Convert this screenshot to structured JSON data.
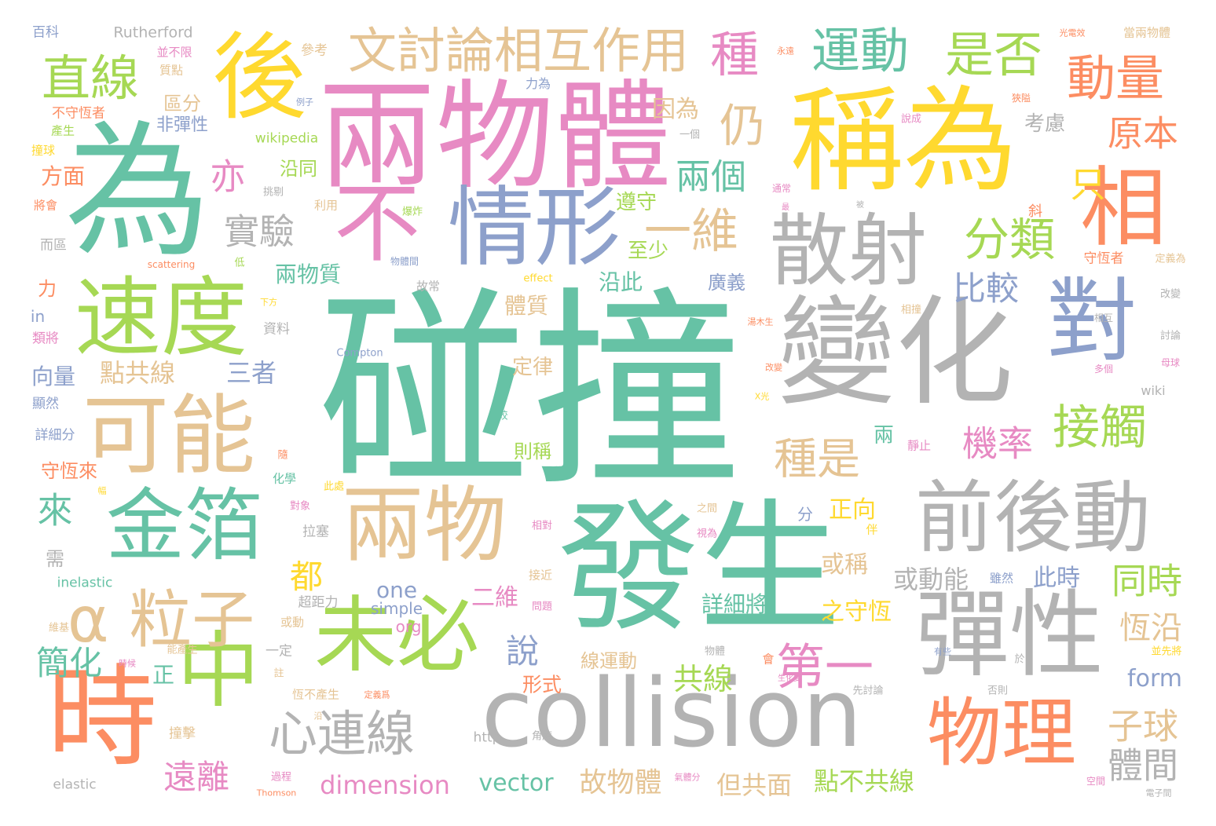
{
  "words": [
    {
      "id": "pengzhuang",
      "text": "碰撞",
      "color": "#66c2a5"
    },
    {
      "id": "liangwuti",
      "text": "兩物體",
      "color": "#e78ac3"
    },
    {
      "id": "wei",
      "text": "為",
      "color": "#66c2a5"
    },
    {
      "id": "chengwei",
      "text": "稱為",
      "color": "#ffd92f"
    },
    {
      "id": "fasheng",
      "text": "發生",
      "color": "#66c2a5"
    },
    {
      "id": "collision",
      "text": "collision",
      "color": "#b3b3b3"
    },
    {
      "id": "bianhua",
      "text": "變化",
      "color": "#b3b3b3"
    },
    {
      "id": "shi",
      "text": "時",
      "color": "#fc8d62"
    },
    {
      "id": "hou",
      "text": "後",
      "color": "#ffd92f"
    },
    {
      "id": "dui",
      "text": "對",
      "color": "#8da0cb"
    },
    {
      "id": "xiang",
      "text": "相",
      "color": "#fc8d62"
    },
    {
      "id": "sudu",
      "text": "速度",
      "color": "#a6d854"
    },
    {
      "id": "keneng",
      "text": "可能",
      "color": "#e5c494"
    },
    {
      "id": "jinbo",
      "text": "金箔",
      "color": "#66c2a5"
    },
    {
      "id": "liangwu",
      "text": "兩物",
      "color": "#e5c494"
    },
    {
      "id": "weibi",
      "text": "未必",
      "color": "#a6d854"
    },
    {
      "id": "zhong",
      "text": "中",
      "color": "#a6d854"
    },
    {
      "id": "qianhoudong",
      "text": "前後動",
      "color": "#b3b3b3"
    },
    {
      "id": "tanxing",
      "text": "彈性",
      "color": "#b3b3b3"
    },
    {
      "id": "sanshe",
      "text": "散射",
      "color": "#b3b3b3"
    },
    {
      "id": "qingxing",
      "text": "情形",
      "color": "#8da0cb"
    },
    {
      "id": "bu",
      "text": "不",
      "color": "#e78ac3"
    },
    {
      "id": "wuli",
      "text": "物理",
      "color": "#fc8d62"
    },
    {
      "id": "alizi",
      "text": "α 粒子",
      "color": "#e5c494"
    },
    {
      "id": "wentaolun",
      "text": "文討論相互作用",
      "color": "#e5c494"
    },
    {
      "id": "yundong",
      "text": "運動",
      "color": "#66c2a5"
    },
    {
      "id": "shifou",
      "text": "是否",
      "color": "#a6d854"
    },
    {
      "id": "dongliang",
      "text": "動量",
      "color": "#fc8d62"
    },
    {
      "id": "zhixian",
      "text": "直線",
      "color": "#a6d854"
    },
    {
      "id": "zhong3",
      "text": "種",
      "color": "#e78ac3"
    },
    {
      "id": "xinlianxian",
      "text": "心連線",
      "color": "#b3b3b3"
    },
    {
      "id": "diyi",
      "text": "第一",
      "color": "#e78ac3"
    },
    {
      "id": "jiechu",
      "text": "接觸",
      "color": "#a6d854"
    },
    {
      "id": "fenlei",
      "text": "分類",
      "color": "#a6d854"
    },
    {
      "id": "yiwei",
      "text": "一維",
      "color": "#e5c494"
    },
    {
      "id": "reng",
      "text": "仍",
      "color": "#e5c494"
    },
    {
      "id": "zhongshi",
      "text": "種是",
      "color": "#e5c494"
    },
    {
      "id": "jilv",
      "text": "機率",
      "color": "#e78ac3"
    },
    {
      "id": "yuanben",
      "text": "原本",
      "color": "#fc8d62"
    },
    {
      "id": "zhi",
      "text": "只",
      "color": "#ffd92f"
    },
    {
      "id": "shiyan",
      "text": "實驗",
      "color": "#b3b3b3"
    },
    {
      "id": "yi",
      "text": "亦",
      "color": "#e78ac3"
    },
    {
      "id": "liangge",
      "text": "兩個",
      "color": "#66c2a5"
    },
    {
      "id": "bijiao",
      "text": "比較",
      "color": "#8da0cb"
    },
    {
      "id": "lai",
      "text": "來",
      "color": "#66c2a5"
    },
    {
      "id": "dou",
      "text": "都",
      "color": "#ffd92f"
    },
    {
      "id": "shuo",
      "text": "說",
      "color": "#8da0cb"
    },
    {
      "id": "tongshi",
      "text": "同時",
      "color": "#a6d854"
    },
    {
      "id": "ziqiu",
      "text": "子球",
      "color": "#e5c494"
    },
    {
      "id": "tijian",
      "text": "體間",
      "color": "#b3b3b3"
    },
    {
      "id": "hengyan",
      "text": "恆沿",
      "color": "#e5c494"
    },
    {
      "id": "jianhua",
      "text": "簡化",
      "color": "#66c2a5"
    },
    {
      "id": "yuanli",
      "text": "遠離",
      "color": "#e78ac3"
    },
    {
      "id": "dimension",
      "text": "dimension",
      "color": "#e78ac3"
    },
    {
      "id": "vector",
      "text": "vector",
      "color": "#66c2a5"
    },
    {
      "id": "guwuti",
      "text": "故物體",
      "color": "#e5c494"
    },
    {
      "id": "dangongmian",
      "text": "但共面",
      "color": "#e5c494"
    },
    {
      "id": "dianbugongxian",
      "text": "點不共線",
      "color": "#a6d854"
    },
    {
      "id": "form",
      "text": "form",
      "color": "#8da0cb"
    },
    {
      "id": "gongxian",
      "text": "共線",
      "color": "#a6d854"
    },
    {
      "id": "xianyundong",
      "text": "線運動",
      "color": "#e5c494"
    },
    {
      "id": "xingshi",
      "text": "形式",
      "color": "#fc8d62"
    },
    {
      "id": "erwei",
      "text": "二維",
      "color": "#e78ac3"
    },
    {
      "id": "one",
      "text": "one",
      "color": "#8da0cb"
    },
    {
      "id": "simple",
      "text": "simple",
      "color": "#8da0cb"
    },
    {
      "id": "org",
      "text": "org",
      "color": "#e78ac3"
    },
    {
      "id": "huodongneng",
      "text": "或動能",
      "color": "#b3b3b3"
    },
    {
      "id": "cishi",
      "text": "此時",
      "color": "#8da0cb"
    },
    {
      "id": "huocheng",
      "text": "或稱",
      "color": "#e5c494"
    },
    {
      "id": "zhengxiang",
      "text": "正向",
      "color": "#ffd92f"
    },
    {
      "id": "zhishouheng",
      "text": "之守恆",
      "color": "#ffd92f"
    },
    {
      "id": "xiangxijiang",
      "text": "詳細將",
      "color": "#66c2a5"
    },
    {
      "id": "zhengzhe",
      "text": "正",
      "color": "#66c2a5"
    },
    {
      "id": "dianggongxian",
      "text": "點共線",
      "color": "#e5c494"
    },
    {
      "id": "sanzhe",
      "text": "三者",
      "color": "#8da0cb"
    },
    {
      "id": "xiangliang",
      "text": "向量",
      "color": "#8da0cb"
    },
    {
      "id": "liangwuzhi",
      "text": "兩物質",
      "color": "#66c2a5"
    },
    {
      "id": "tizhi",
      "text": "體質",
      "color": "#e5c494"
    },
    {
      "id": "dinglv",
      "text": "定律",
      "color": "#e5c494"
    },
    {
      "id": "yanci",
      "text": "沿此",
      "color": "#66c2a5"
    },
    {
      "id": "guangyi",
      "text": "廣義",
      "color": "#8da0cb"
    },
    {
      "id": "zhishao",
      "text": "至少",
      "color": "#a6d854"
    },
    {
      "id": "zunshou",
      "text": "遵守",
      "color": "#a6d854"
    },
    {
      "id": "yinwei",
      "text": "因為",
      "color": "#e5c494"
    },
    {
      "id": "kaolv",
      "text": "考慮",
      "color": "#b3b3b3"
    },
    {
      "id": "zeceng",
      "text": "則稱",
      "color": "#a6d854"
    },
    {
      "id": "liang",
      "text": "兩",
      "color": "#66c2a5"
    },
    {
      "id": "shouhenglai",
      "text": "守恆來",
      "color": "#fc8d62"
    },
    {
      "id": "fangmian",
      "text": "方面",
      "color": "#fc8d62"
    },
    {
      "id": "qufen",
      "text": "區分",
      "color": "#e5c494"
    },
    {
      "id": "feitanxing",
      "text": "非彈性",
      "color": "#8da0cb"
    },
    {
      "id": "yantong",
      "text": "沿同",
      "color": "#a6d854"
    },
    {
      "id": "wikipedia",
      "text": "wikipedia",
      "color": "#a6d854"
    },
    {
      "id": "rutherford",
      "text": "Rutherford",
      "color": "#b3b3b3"
    },
    {
      "id": "baike",
      "text": "百科",
      "color": "#8da0cb"
    },
    {
      "id": "cankao",
      "text": "參考",
      "color": "#e5c494"
    },
    {
      "id": "buxian",
      "text": "並不限",
      "color": "#e78ac3"
    },
    {
      "id": "zhidian",
      "text": "質點",
      "color": "#e5c494"
    },
    {
      "id": "bushouheng",
      "text": "不守恆者",
      "color": "#fc8d62"
    },
    {
      "id": "chansheng",
      "text": "產生",
      "color": "#a6d854"
    },
    {
      "id": "zhuangqiu",
      "text": "撞球",
      "color": "#ffd92f"
    },
    {
      "id": "lijiang",
      "text": "力為",
      "color": "#8da0cb"
    },
    {
      "id": "elastic",
      "text": "elastic",
      "color": "#b3b3b3"
    },
    {
      "id": "inelastic",
      "text": "inelastic",
      "color": "#66c2a5"
    },
    {
      "id": "http",
      "text": "http",
      "color": "#b3b3b3"
    },
    {
      "id": "compton",
      "text": "Compton",
      "color": "#8da0cb"
    },
    {
      "id": "wiki",
      "text": "wiki",
      "color": "#b3b3b3"
    },
    {
      "id": "effect",
      "text": "effect",
      "color": "#ffd92f"
    },
    {
      "id": "scattering",
      "text": "scattering",
      "color": "#fc8d62"
    },
    {
      "id": "thomson",
      "text": "Thomson",
      "color": "#fc8d62"
    },
    {
      "id": "in",
      "text": "in",
      "color": "#8da0cb"
    },
    {
      "id": "li",
      "text": "力",
      "color": "#fc8d62"
    },
    {
      "id": "leijiang",
      "text": "類將",
      "color": "#e78ac3"
    },
    {
      "id": "xianran",
      "text": "顯然",
      "color": "#8da0cb"
    },
    {
      "id": "xiangxifen",
      "text": "詳細分",
      "color": "#8da0cb"
    },
    {
      "id": "xu",
      "text": "需",
      "color": "#b3b3b3"
    },
    {
      "id": "chaojulili",
      "text": "超距力",
      "color": "#b3b3b3"
    },
    {
      "id": "huodong",
      "text": "或動",
      "color": "#e5c494"
    },
    {
      "id": "yiding",
      "text": "一定",
      "color": "#b3b3b3"
    },
    {
      "id": "weiji",
      "text": "維基",
      "color": "#e5c494"
    },
    {
      "id": "zhuangji",
      "text": "撞擊",
      "color": "#e5c494"
    },
    {
      "id": "guocheng",
      "text": "過程",
      "color": "#e78ac3"
    },
    {
      "id": "huaxue",
      "text": "化學",
      "color": "#66c2a5"
    },
    {
      "id": "duixiang",
      "text": "對象",
      "color": "#e78ac3"
    },
    {
      "id": "lasai",
      "text": "拉塞",
      "color": "#b3b3b3"
    },
    {
      "id": "zhu",
      "text": "註",
      "color": "#e5c494"
    },
    {
      "id": "hengbuchansheng",
      "text": "恆不產生",
      "color": "#e5c494"
    },
    {
      "id": "zhuangji2",
      "text": "沿",
      "color": "#e5c494"
    },
    {
      "id": "jiejin",
      "text": "接近",
      "color": "#e5c494"
    },
    {
      "id": "wenti",
      "text": "問題",
      "color": "#e78ac3"
    },
    {
      "id": "xiangdui",
      "text": "相對",
      "color": "#e78ac3"
    },
    {
      "id": "fen",
      "text": "分",
      "color": "#8da0cb"
    },
    {
      "id": "zhijian",
      "text": "之間",
      "color": "#e5c494"
    },
    {
      "id": "shiwei",
      "text": "視為",
      "color": "#e78ac3"
    },
    {
      "id": "xiexian",
      "text": "斜",
      "color": "#fc8d62"
    },
    {
      "id": "shouhengzhe",
      "text": "守恆者",
      "color": "#fc8d62"
    },
    {
      "id": "dingyiwei",
      "text": "定義為",
      "color": "#e5c494"
    },
    {
      "id": "gaibian",
      "text": "改變",
      "color": "#b3b3b3"
    },
    {
      "id": "xianghu",
      "text": "相互",
      "color": "#b3b3b3"
    },
    {
      "id": "taolun",
      "text": "討論",
      "color": "#b3b3b3"
    },
    {
      "id": "muqiu",
      "text": "母球",
      "color": "#e78ac3"
    },
    {
      "id": "duoge",
      "text": "多個",
      "color": "#e78ac3"
    },
    {
      "id": "xiangzhuang",
      "text": "相撞",
      "color": "#e5c494"
    },
    {
      "id": "shuocheng",
      "text": "說成",
      "color": "#e78ac3"
    },
    {
      "id": "xiaai",
      "text": "狹隘",
      "color": "#fc8d62"
    },
    {
      "id": "dangliangwuti",
      "text": "當兩物體",
      "color": "#e5c494"
    },
    {
      "id": "guangdianxiao",
      "text": "光電效",
      "color": "#fc8d62"
    },
    {
      "id": "tongchang",
      "text": "通常",
      "color": "#e78ac3"
    },
    {
      "id": "liyong",
      "text": "利用",
      "color": "#e5c494"
    },
    {
      "id": "baozha",
      "text": "爆炸",
      "color": "#a6d854"
    },
    {
      "id": "wutijian",
      "text": "物體間",
      "color": "#8da0cb"
    },
    {
      "id": "guchang",
      "text": "故常",
      "color": "#b3b3b3"
    },
    {
      "id": "xiafang",
      "text": "下方",
      "color": "#ffd92f"
    },
    {
      "id": "ziliao",
      "text": "資料",
      "color": "#b3b3b3"
    },
    {
      "id": "di",
      "text": "低",
      "color": "#a6d854"
    },
    {
      "id": "yige",
      "text": "一個",
      "color": "#b3b3b3"
    },
    {
      "id": "tiaobie",
      "text": "挑剔",
      "color": "#b3b3b3"
    },
    {
      "id": "jiangyu",
      "text": "將會",
      "color": "#fc8d62"
    },
    {
      "id": "erqufen",
      "text": "而區",
      "color": "#b3b3b3"
    },
    {
      "id": "lizi",
      "text": "例子",
      "color": "#8da0cb"
    },
    {
      "id": "yongyuan",
      "text": "永遠",
      "color": "#fc8d62"
    },
    {
      "id": "xianfen",
      "text": "先討論",
      "color": "#b3b3b3"
    },
    {
      "id": "fouze",
      "text": "否則",
      "color": "#b3b3b3"
    },
    {
      "id": "kongjian",
      "text": "空間",
      "color": "#e78ac3"
    },
    {
      "id": "dianzijian",
      "text": "電子間",
      "color": "#b3b3b3"
    },
    {
      "id": "bingxianjiang",
      "text": "並先將",
      "color": "#ffd92f"
    },
    {
      "id": "yu",
      "text": "於",
      "color": "#b3b3b3"
    },
    {
      "id": "youxie",
      "text": "有些",
      "color": "#8da0cb"
    },
    {
      "id": "hui",
      "text": "會",
      "color": "#fc8d62"
    },
    {
      "id": "wuti",
      "text": "物體",
      "color": "#b3b3b3"
    },
    {
      "id": "xianguang",
      "text": "X光",
      "color": "#ffd92f"
    },
    {
      "id": "jiangyi",
      "text": "較",
      "color": "#66c2a5"
    },
    {
      "id": "jingzhi",
      "text": "靜止",
      "color": "#e78ac3"
    },
    {
      "id": "suiran",
      "text": "雖然",
      "color": "#8da0cb"
    },
    {
      "id": "ban",
      "text": "伴",
      "color": "#ffd92f"
    },
    {
      "id": "sui",
      "text": "隨",
      "color": "#fc8d62"
    },
    {
      "id": "cichu",
      "text": "此處",
      "color": "#ffd92f"
    },
    {
      "id": "fu",
      "text": "幅",
      "color": "#ffd92f"
    },
    {
      "id": "nengchansheng",
      "text": "能產生",
      "color": "#e5c494"
    },
    {
      "id": "shihou",
      "text": "時候",
      "color": "#e78ac3"
    },
    {
      "id": "dingyiwei2",
      "text": "定義爲",
      "color": "#fc8d62"
    },
    {
      "id": "jiaodu",
      "text": "角度",
      "color": "#b3b3b3"
    },
    {
      "id": "fanshe",
      "text": "氣體分",
      "color": "#e78ac3"
    },
    {
      "id": "shenghuabian",
      "text": "生化變",
      "color": "#e78ac3"
    },
    {
      "id": "haomusheng",
      "text": "湯木生",
      "color": "#fc8d62"
    },
    {
      "id": "gaibian2",
      "text": "改變",
      "color": "#fc8d62"
    },
    {
      "id": "zui",
      "text": "最",
      "color": "#e78ac3"
    },
    {
      "id": "bi",
      "text": "被",
      "color": "#b3b3b3"
    }
  ]
}
